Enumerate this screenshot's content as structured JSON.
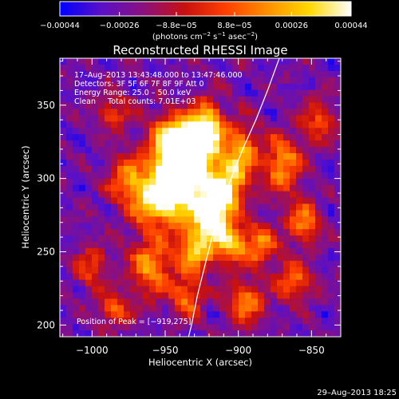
{
  "chart_data": {
    "type": "heatmap",
    "title": "Reconstructed RHESSI Image",
    "xlabel": "Heliocentric X (arcsec)",
    "ylabel": "Heliocentric Y (arcsec)",
    "xlim": [
      -1022,
      -830
    ],
    "ylim": [
      192,
      382
    ],
    "x_ticks": [
      -1000,
      -950,
      -900,
      -850
    ],
    "x_tick_labels": [
      "−1000",
      "−950",
      "−900",
      "−850"
    ],
    "y_ticks": [
      200,
      250,
      300,
      350
    ],
    "y_tick_labels": [
      "200",
      "250",
      "300",
      "350"
    ],
    "grid": false,
    "colormap": "blue-purple-red-orange-yellow-white",
    "colors": {
      "cmap": [
        "#0000ff",
        "#5a10c8",
        "#8a1080",
        "#c81010",
        "#ff4000",
        "#ff9000",
        "#ffd800",
        "#ffffff"
      ],
      "background": "#000000",
      "foreground": "#ffffff"
    },
    "colorbar": {
      "min": -0.00044,
      "max": 0.00044,
      "ticks": [
        -0.00044,
        -0.00026,
        -8.8e-05,
        8.8e-05,
        0.00026,
        0.00044
      ],
      "tick_labels": [
        "−0.00044",
        "−0.00026",
        "−8.8e−05",
        "8.8e−05",
        "0.00026",
        "0.00044"
      ],
      "label_text": "(photons cm",
      "label_sup1": "−2",
      "label_mid": " s",
      "label_sup2": "−1",
      "label_end": " asec",
      "label_sup3": "−2",
      "label_close": ")"
    },
    "annotations": [
      "17–Aug–2013 13:43:48.000 to 13:47:46.000",
      "Detectors: 3F 5F 6F 7F 8F 9F Att 0",
      "Energy Range: 25.0 – 50.0 keV",
      "Clean     Total counts: 7.01E+03"
    ],
    "peak_label": "Position of Peak = [−919,275]",
    "peak": {
      "x": -919,
      "y": 275
    },
    "limb_curve": [
      [
        -872,
        382
      ],
      [
        -880,
        360
      ],
      [
        -888,
        340
      ],
      [
        -897,
        320
      ],
      [
        -905,
        300
      ],
      [
        -912,
        280
      ],
      [
        -918,
        260
      ],
      [
        -923,
        240
      ],
      [
        -928,
        220
      ],
      [
        -932,
        200
      ],
      [
        -934,
        192
      ]
    ],
    "intensity_blobs": [
      {
        "x": -919,
        "y": 275,
        "value": 1.0,
        "sx": 9,
        "sy": 12
      },
      {
        "x": -922,
        "y": 333,
        "value": 0.95,
        "sx": 8,
        "sy": 12
      },
      {
        "x": -943,
        "y": 300,
        "value": 0.8,
        "sx": 11,
        "sy": 20
      },
      {
        "x": -932,
        "y": 310,
        "value": 0.85,
        "sx": 10,
        "sy": 14
      },
      {
        "x": -907,
        "y": 296,
        "value": 0.7,
        "sx": 9,
        "sy": 12
      },
      {
        "x": -958,
        "y": 285,
        "value": 0.6,
        "sx": 11,
        "sy": 12
      },
      {
        "x": -945,
        "y": 325,
        "value": 0.65,
        "sx": 10,
        "sy": 12
      },
      {
        "x": -898,
        "y": 320,
        "value": 0.55,
        "sx": 8,
        "sy": 12
      },
      {
        "x": -960,
        "y": 240,
        "value": 0.55,
        "sx": 10,
        "sy": 14
      },
      {
        "x": -930,
        "y": 250,
        "value": 0.6,
        "sx": 9,
        "sy": 10
      },
      {
        "x": -905,
        "y": 255,
        "value": 0.55,
        "sx": 8,
        "sy": 10
      },
      {
        "x": -870,
        "y": 310,
        "value": 0.55,
        "sx": 9,
        "sy": 14
      },
      {
        "x": -855,
        "y": 270,
        "value": 0.5,
        "sx": 8,
        "sy": 10
      },
      {
        "x": -885,
        "y": 255,
        "value": 0.5,
        "sx": 8,
        "sy": 10
      },
      {
        "x": -975,
        "y": 300,
        "value": 0.45,
        "sx": 10,
        "sy": 12
      },
      {
        "x": -895,
        "y": 215,
        "value": 0.5,
        "sx": 9,
        "sy": 10
      },
      {
        "x": -935,
        "y": 220,
        "value": 0.45,
        "sx": 8,
        "sy": 10
      },
      {
        "x": -985,
        "y": 345,
        "value": 0.35,
        "sx": 8,
        "sy": 8
      },
      {
        "x": -1000,
        "y": 240,
        "value": 0.35,
        "sx": 8,
        "sy": 10
      },
      {
        "x": -845,
        "y": 340,
        "value": 0.4,
        "sx": 8,
        "sy": 10
      },
      {
        "x": -862,
        "y": 230,
        "value": 0.45,
        "sx": 9,
        "sy": 9
      },
      {
        "x": -985,
        "y": 210,
        "value": 0.4,
        "sx": 8,
        "sy": 8
      }
    ]
  },
  "footer": {
    "date": "29–Aug–2013 18:25"
  }
}
